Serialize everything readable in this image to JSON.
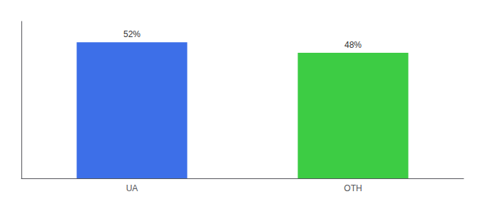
{
  "chart_data": {
    "type": "bar",
    "categories": [
      "UA",
      "OTH"
    ],
    "values": [
      52,
      48
    ],
    "value_labels": [
      "52%",
      "48%"
    ],
    "colors": [
      "#3d6fe8",
      "#3dcc44"
    ],
    "ylim": [
      0,
      60
    ],
    "data_labels": true,
    "tick_labels": "x",
    "grid": false
  }
}
